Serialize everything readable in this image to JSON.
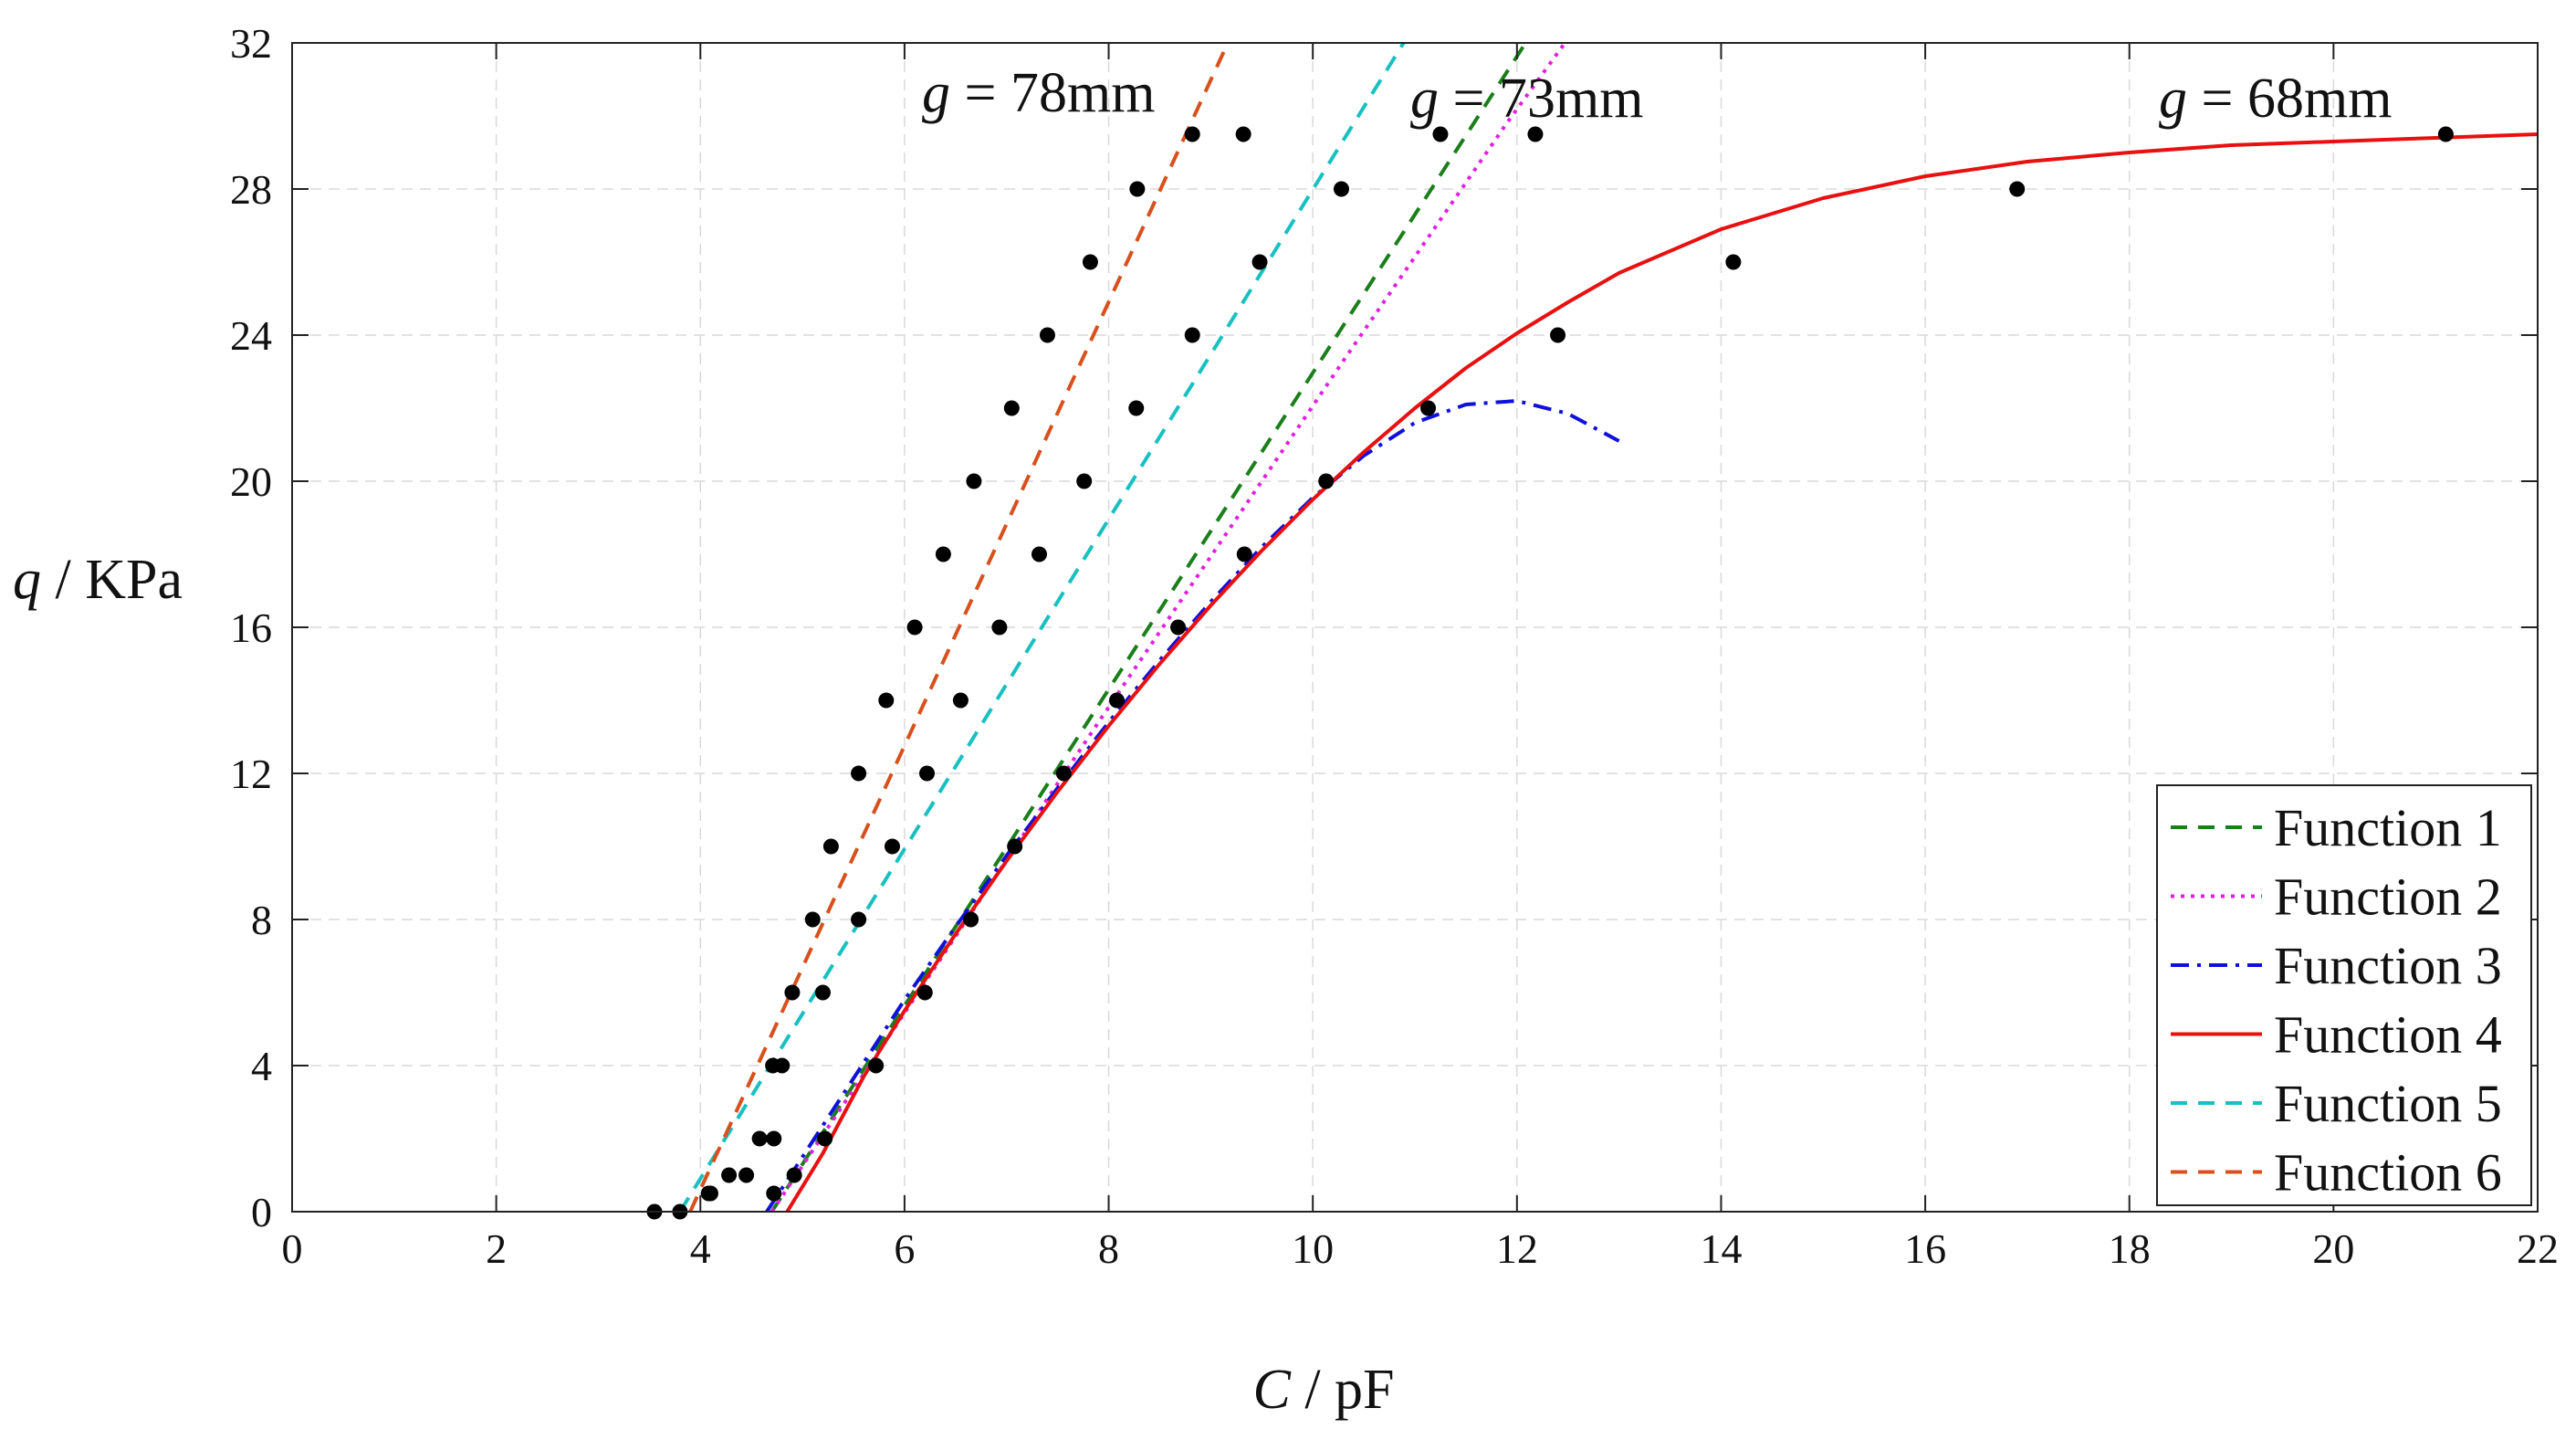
{
  "chart_data": {
    "type": "scatter",
    "title": "",
    "xlabel": {
      "symbol": "C",
      "unit": "pF"
    },
    "ylabel": {
      "symbol": "q",
      "unit": "KPa"
    },
    "xlim": [
      0,
      22
    ],
    "ylim": [
      0,
      32
    ],
    "xticks": [
      0,
      2,
      4,
      6,
      8,
      10,
      12,
      14,
      16,
      18,
      20,
      22
    ],
    "yticks": [
      0,
      4,
      8,
      12,
      16,
      20,
      24,
      28,
      32
    ],
    "grid": true,
    "legend_position": "bottom-right",
    "annotations": [
      {
        "text": "g = 78mm",
        "symbol": "g",
        "value": "78mm",
        "x": 6.9,
        "y": 30.5
      },
      {
        "text": "g = 73mm",
        "symbol": "g",
        "value": "73mm",
        "x": 11.7,
        "y": 30.5
      },
      {
        "text": "g = 68mm",
        "symbol": "g",
        "value": "68mm",
        "x": 19.2,
        "y": 30.5
      }
    ],
    "scatter_series": [
      {
        "name": "g = 78mm",
        "color": "#000000",
        "x": [
          3.55,
          4.08,
          4.45,
          4.58,
          4.71,
          4.9,
          5.1,
          5.28,
          5.55,
          5.82,
          6.1,
          6.38,
          6.68,
          7.05,
          7.4,
          7.82,
          8.28,
          8.82,
          9.32
        ],
        "y": [
          0,
          0.5,
          1,
          2,
          4,
          6,
          8,
          10,
          12,
          14,
          16,
          18,
          20,
          22,
          24,
          26,
          28,
          29.5,
          29.5
        ]
      },
      {
        "name": "g = 73mm",
        "color": "#000000",
        "x": [
          3.8,
          4.1,
          4.28,
          4.72,
          4.8,
          5.2,
          5.55,
          5.88,
          6.22,
          6.55,
          6.93,
          7.32,
          7.76,
          8.27,
          8.82,
          9.48,
          10.28,
          11.25,
          12.18
        ],
        "y": [
          0,
          0.5,
          1,
          2,
          4,
          6,
          8,
          10,
          12,
          14,
          16,
          18,
          20,
          22,
          24,
          26,
          28,
          29.5,
          29.5
        ]
      },
      {
        "name": "g = 68mm",
        "color": "#000000",
        "x": [
          4.72,
          4.92,
          5.22,
          5.72,
          6.2,
          6.65,
          7.08,
          7.56,
          8.08,
          8.68,
          9.33,
          10.13,
          11.13,
          12.4,
          14.12,
          16.9,
          21.1
        ],
        "y": [
          0.5,
          1,
          2,
          4,
          6,
          8,
          10,
          12,
          14,
          16,
          18,
          20,
          22,
          24,
          26,
          28,
          29.5
        ]
      }
    ],
    "line_series": [
      {
        "name": "Function 1",
        "color": "#1a7f1a",
        "dash": "dashed",
        "x": [
          4.7,
          12.2
        ],
        "y": [
          0,
          32.5
        ]
      },
      {
        "name": "Function 2",
        "color": "#e020e0",
        "dash": "dotted",
        "x": [
          4.7,
          5.5,
          6.3,
          7.1,
          7.9,
          8.7,
          9.5,
          10.3,
          11.1,
          11.9,
          12.6
        ],
        "y": [
          0,
          3.35,
          6.7,
          10.05,
          13.4,
          16.7,
          20.0,
          23.3,
          26.55,
          29.8,
          32.5
        ]
      },
      {
        "name": "Function 3",
        "color": "#1010dd",
        "dash": "dashdot",
        "x": [
          4.65,
          5.0,
          5.5,
          6.0,
          6.5,
          7.0,
          7.5,
          8.0,
          8.5,
          9.0,
          9.5,
          10.0,
          10.5,
          11.0,
          11.5,
          12.0,
          12.5,
          13.0
        ],
        "y": [
          0,
          1.5,
          3.65,
          5.8,
          7.8,
          9.75,
          11.6,
          13.4,
          15.1,
          16.7,
          18.2,
          19.55,
          20.7,
          21.6,
          22.1,
          22.2,
          21.85,
          21.1
        ]
      },
      {
        "name": "Function 4",
        "color": "#e81010",
        "dash": "solid",
        "x": [
          4.85,
          5.2,
          5.6,
          6.0,
          6.5,
          7.0,
          7.5,
          8.0,
          8.5,
          9.0,
          9.5,
          10.0,
          10.5,
          11.0,
          11.5,
          12.0,
          12.5,
          13.0,
          14.0,
          15.0,
          16.0,
          17.0,
          18.0,
          19.0,
          20.0,
          21.0,
          22.0
        ],
        "y": [
          0,
          1.6,
          3.7,
          5.5,
          7.6,
          9.6,
          11.5,
          13.3,
          15.0,
          16.6,
          18.1,
          19.5,
          20.8,
          22.0,
          23.1,
          24.05,
          24.9,
          25.7,
          26.9,
          27.75,
          28.35,
          28.75,
          29.0,
          29.2,
          29.3,
          29.4,
          29.5
        ]
      },
      {
        "name": "Function 5",
        "color": "#19c0c0",
        "dash": "dashed",
        "x": [
          3.8,
          11.0
        ],
        "y": [
          0,
          32.5
        ]
      },
      {
        "name": "Function 6",
        "color": "#d8501c",
        "dash": "dashed",
        "x": [
          3.9,
          9.25
        ],
        "y": [
          0,
          32.5
        ]
      }
    ]
  }
}
